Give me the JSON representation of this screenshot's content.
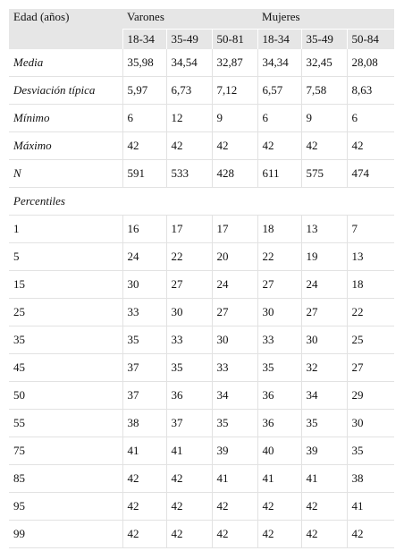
{
  "table": {
    "header": {
      "label": "Edad (años)",
      "groups": [
        "Varones",
        "Mujeres"
      ],
      "subgroups": [
        "18-34",
        "35-49",
        "50-81",
        "18-34",
        "35-49",
        "50-84"
      ]
    },
    "stats_rows": [
      [
        "Media",
        "35,98",
        "34,54",
        "32,87",
        "34,34",
        "32,45",
        "28,08"
      ],
      [
        "Desviación típica",
        "5,97",
        "6,73",
        "7,12",
        "6,57",
        "7,58",
        "8,63"
      ],
      [
        "Mínimo",
        "6",
        "12",
        "9",
        "6",
        "9",
        "6"
      ],
      [
        "Máximo",
        "42",
        "42",
        "42",
        "42",
        "42",
        "42"
      ],
      [
        "N",
        "591",
        "533",
        "428",
        "611",
        "575",
        "474"
      ]
    ],
    "section_label": "Percentiles",
    "percentile_rows": [
      [
        "1",
        "16",
        "17",
        "17",
        "18",
        "13",
        "7"
      ],
      [
        "5",
        "24",
        "22",
        "20",
        "22",
        "19",
        "13"
      ],
      [
        "15",
        "30",
        "27",
        "24",
        "27",
        "24",
        "18"
      ],
      [
        "25",
        "33",
        "30",
        "27",
        "30",
        "27",
        "22"
      ],
      [
        "35",
        "35",
        "33",
        "30",
        "33",
        "30",
        "25"
      ],
      [
        "45",
        "37",
        "35",
        "33",
        "35",
        "32",
        "27"
      ],
      [
        "50",
        "37",
        "36",
        "34",
        "36",
        "34",
        "29"
      ],
      [
        "55",
        "38",
        "37",
        "35",
        "36",
        "35",
        "30"
      ],
      [
        "75",
        "41",
        "41",
        "39",
        "40",
        "39",
        "35"
      ],
      [
        "85",
        "42",
        "42",
        "41",
        "41",
        "41",
        "38"
      ],
      [
        "95",
        "42",
        "42",
        "42",
        "42",
        "42",
        "41"
      ],
      [
        "99",
        "42",
        "42",
        "42",
        "42",
        "42",
        "42"
      ]
    ]
  }
}
